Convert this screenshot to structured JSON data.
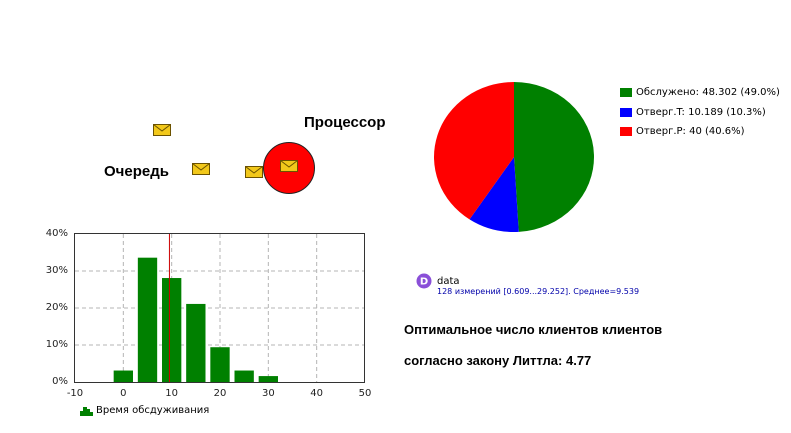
{
  "labels": {
    "queue": "Очередь",
    "processor": "Процессор"
  },
  "pie": {
    "legend": [
      {
        "text": "Обслужено: 48.302 (49.0%)",
        "color": "#008000",
        "value": 48.302
      },
      {
        "text": "Отверг.T: 10.189 (10.3%)",
        "color": "#0000ff",
        "value": 10.189
      },
      {
        "text": "Отверг.P: 40 (40.6%)",
        "color": "#ff0000",
        "value": 40
      }
    ]
  },
  "dataset": {
    "name": "data",
    "stats": "128 измерений [0.609...29.252]. Среднее=9.539",
    "badge": "D",
    "badge_color": "#8a4fd8"
  },
  "result": {
    "line1": "Оптимальное число клиентов клиентов",
    "line2": "согласно закону Литтла:  4.77"
  },
  "chart_data": {
    "type": "bar",
    "series": [
      {
        "name": "Время обсдуживания",
        "color": "#008000"
      }
    ],
    "bin_centers": [
      0,
      5,
      10,
      15,
      20,
      25,
      30
    ],
    "values": [
      3.1,
      33.6,
      28.1,
      21.1,
      9.4,
      3.1,
      1.6
    ],
    "bin_width": 4,
    "xlim": [
      -10,
      50
    ],
    "ylim": [
      0,
      40
    ],
    "x_ticks": [
      "-10",
      "0",
      "10",
      "20",
      "30",
      "40",
      "50"
    ],
    "y_ticks": [
      "0%",
      "10%",
      "20%",
      "30%",
      "40%"
    ],
    "marker_x": 9.539,
    "marker_color": "#cc0000",
    "grid": true,
    "legend_text": "Время обсдуживания"
  }
}
